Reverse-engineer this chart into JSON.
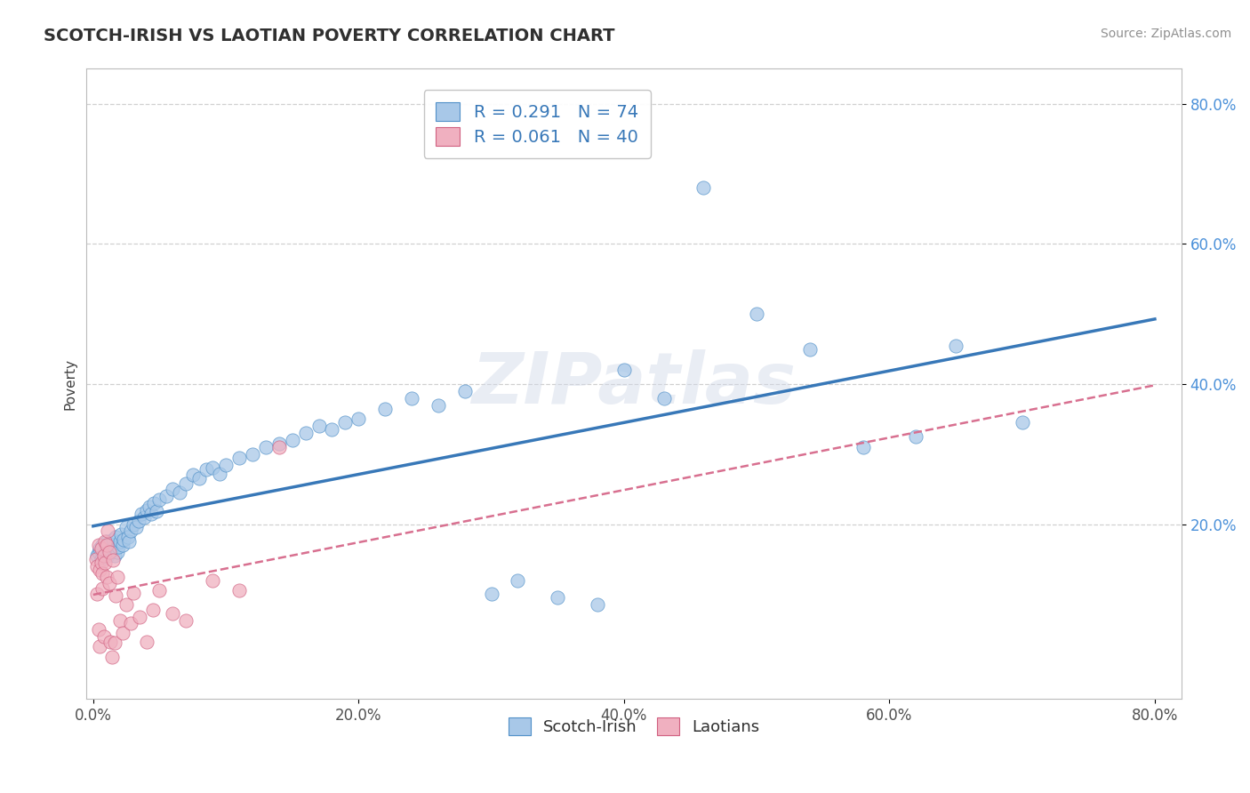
{
  "title": "SCOTCH-IRISH VS LAOTIAN POVERTY CORRELATION CHART",
  "source": "Source: ZipAtlas.com",
  "ylabel": "Poverty",
  "xlim": [
    -0.005,
    0.82
  ],
  "ylim": [
    -0.05,
    0.85
  ],
  "xtick_labels": [
    "0.0%",
    "20.0%",
    "40.0%",
    "60.0%",
    "80.0%"
  ],
  "xtick_vals": [
    0.0,
    0.2,
    0.4,
    0.6,
    0.8
  ],
  "ytick_labels": [
    "20.0%",
    "40.0%",
    "60.0%",
    "80.0%"
  ],
  "ytick_vals": [
    0.2,
    0.4,
    0.6,
    0.8
  ],
  "R_blue": 0.291,
  "N_blue": 74,
  "R_pink": 0.061,
  "N_pink": 40,
  "blue_fill": "#A8C8E8",
  "pink_fill": "#F0B0C0",
  "blue_edge": "#5090C8",
  "pink_edge": "#D06080",
  "blue_line": "#3878B8",
  "pink_line": "#D87090",
  "grid_color": "#D0D0D0",
  "bg": "#FFFFFF",
  "legend_blue": "Scotch-Irish",
  "legend_pink": "Laotians",
  "watermark": "ZIPatlas",
  "title_color": "#303030",
  "source_color": "#909090",
  "ylabel_color": "#404040",
  "tick_color_x": "#505050",
  "tick_color_y": "#4A90D9",
  "scotch_irish_x": [
    0.003,
    0.004,
    0.005,
    0.006,
    0.007,
    0.008,
    0.009,
    0.01,
    0.01,
    0.011,
    0.012,
    0.013,
    0.014,
    0.015,
    0.016,
    0.017,
    0.018,
    0.019,
    0.02,
    0.021,
    0.022,
    0.023,
    0.025,
    0.026,
    0.027,
    0.028,
    0.03,
    0.032,
    0.034,
    0.036,
    0.038,
    0.04,
    0.042,
    0.044,
    0.046,
    0.048,
    0.05,
    0.055,
    0.06,
    0.065,
    0.07,
    0.075,
    0.08,
    0.085,
    0.09,
    0.095,
    0.1,
    0.11,
    0.12,
    0.13,
    0.14,
    0.15,
    0.16,
    0.17,
    0.18,
    0.19,
    0.2,
    0.22,
    0.24,
    0.26,
    0.28,
    0.3,
    0.32,
    0.35,
    0.38,
    0.4,
    0.43,
    0.46,
    0.5,
    0.54,
    0.58,
    0.62,
    0.65,
    0.7
  ],
  "scotch_irish_y": [
    0.155,
    0.16,
    0.165,
    0.15,
    0.17,
    0.158,
    0.162,
    0.168,
    0.175,
    0.155,
    0.172,
    0.16,
    0.165,
    0.178,
    0.155,
    0.182,
    0.16,
    0.168,
    0.175,
    0.185,
    0.17,
    0.178,
    0.195,
    0.182,
    0.175,
    0.19,
    0.2,
    0.195,
    0.205,
    0.215,
    0.21,
    0.22,
    0.225,
    0.215,
    0.23,
    0.218,
    0.235,
    0.24,
    0.25,
    0.245,
    0.258,
    0.27,
    0.265,
    0.278,
    0.28,
    0.272,
    0.285,
    0.295,
    0.3,
    0.31,
    0.315,
    0.32,
    0.33,
    0.34,
    0.335,
    0.345,
    0.35,
    0.365,
    0.38,
    0.37,
    0.39,
    0.1,
    0.12,
    0.095,
    0.085,
    0.42,
    0.38,
    0.68,
    0.5,
    0.45,
    0.31,
    0.325,
    0.455,
    0.345
  ],
  "laotian_x": [
    0.002,
    0.003,
    0.003,
    0.004,
    0.004,
    0.005,
    0.005,
    0.006,
    0.006,
    0.007,
    0.007,
    0.008,
    0.008,
    0.009,
    0.009,
    0.01,
    0.01,
    0.011,
    0.012,
    0.012,
    0.013,
    0.014,
    0.015,
    0.016,
    0.017,
    0.018,
    0.02,
    0.022,
    0.025,
    0.028,
    0.03,
    0.035,
    0.04,
    0.045,
    0.05,
    0.06,
    0.07,
    0.09,
    0.11,
    0.14
  ],
  "laotian_y": [
    0.15,
    0.14,
    0.1,
    0.05,
    0.17,
    0.135,
    0.025,
    0.145,
    0.165,
    0.13,
    0.108,
    0.155,
    0.04,
    0.145,
    0.175,
    0.125,
    0.17,
    0.19,
    0.115,
    0.16,
    0.032,
    0.01,
    0.148,
    0.03,
    0.098,
    0.125,
    0.062,
    0.045,
    0.085,
    0.058,
    0.102,
    0.068,
    0.032,
    0.078,
    0.105,
    0.072,
    0.062,
    0.12,
    0.105,
    0.31
  ]
}
